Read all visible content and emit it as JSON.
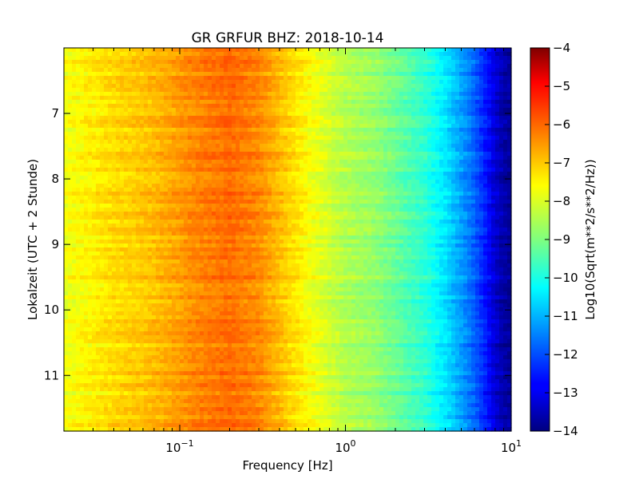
{
  "chart_data": {
    "type": "heatmap",
    "title": "GR GRFUR BHZ: 2018-10-14",
    "xlabel": "Frequency [Hz]",
    "ylabel": "Lokalzeit (UTC + 2 Stunde)",
    "colorbar_label": "Log10(Sqrt(m**2/s**2/Hz))",
    "x_scale": "log",
    "xlim": [
      0.02,
      10
    ],
    "ylim": [
      6.0,
      11.85
    ],
    "y_inverted": true,
    "x_ticks": [
      {
        "value": 0.1,
        "base": "10",
        "exp": "−1"
      },
      {
        "value": 1,
        "base": "10",
        "exp": "0"
      },
      {
        "value": 10,
        "base": "10",
        "exp": "1"
      }
    ],
    "y_ticks": [
      {
        "value": 7,
        "label": "7"
      },
      {
        "value": 8,
        "label": "8"
      },
      {
        "value": 9,
        "label": "9"
      },
      {
        "value": 10,
        "label": "10"
      },
      {
        "value": 11,
        "label": "11"
      }
    ],
    "colorbar_range": [
      -14,
      -4
    ],
    "colorbar_ticks": [
      {
        "value": -4,
        "label": "−4"
      },
      {
        "value": -5,
        "label": "−5"
      },
      {
        "value": -6,
        "label": "−6"
      },
      {
        "value": -7,
        "label": "−7"
      },
      {
        "value": -8,
        "label": "−8"
      },
      {
        "value": -9,
        "label": "−9"
      },
      {
        "value": -10,
        "label": "−10"
      },
      {
        "value": -11,
        "label": "−11"
      },
      {
        "value": -12,
        "label": "−12"
      },
      {
        "value": -13,
        "label": "−13"
      },
      {
        "value": -14,
        "label": "−14"
      }
    ],
    "colormap": "jet",
    "spectrum": [
      [
        0.02,
        -7.9
      ],
      [
        0.04,
        -7.4
      ],
      [
        0.06,
        -7.2
      ],
      [
        0.08,
        -7.0
      ],
      [
        0.12,
        -6.6
      ],
      [
        0.2,
        -6.3
      ],
      [
        0.3,
        -6.6
      ],
      [
        0.45,
        -7.3
      ],
      [
        0.6,
        -7.8
      ],
      [
        0.8,
        -8.2
      ],
      [
        1.0,
        -8.5
      ],
      [
        1.5,
        -8.8
      ],
      [
        2.0,
        -9.2
      ],
      [
        3.0,
        -9.8
      ],
      [
        4.0,
        -10.5
      ],
      [
        5.0,
        -11.2
      ],
      [
        6.0,
        -11.8
      ],
      [
        7.0,
        -12.5
      ],
      [
        8.0,
        -13.2
      ],
      [
        9.0,
        -13.6
      ],
      [
        10.0,
        -13.8
      ]
    ]
  }
}
